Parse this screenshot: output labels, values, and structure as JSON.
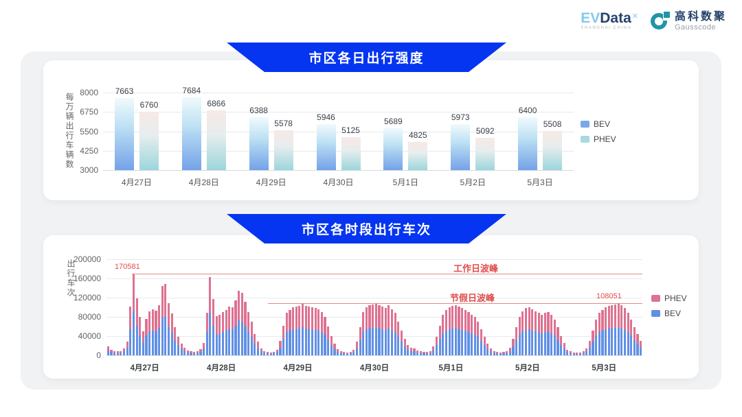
{
  "header": {
    "evdata": {
      "ev": "EV",
      "data": "Data",
      "sup": "✕",
      "subtitle": "SHANGHAI CHINA"
    },
    "gausscode": {
      "cn": "高科数聚",
      "en": "Gausscode"
    }
  },
  "colors": {
    "banner_blue": "#0535f0",
    "bev_blue": "#6090e5",
    "phev_pink": "#dd7291",
    "bev_gradient_top": "#f0fafd",
    "bev_gradient_mid": "#bfe2f4",
    "bev_gradient_bottom": "#74a2e8",
    "phev_gradient_top": "#f7e9e5",
    "phev_gradient_mid": "#e7edee",
    "phev_gradient_bottom": "#9cd6dc",
    "legend_bev_daily": "#79a7ea",
    "legend_phev_daily": "#a5dae0",
    "annotation_red": "#e04c4c",
    "reference_line_red": "#e08a8a",
    "gausscode_teal": "#2095a6",
    "evdata_lightblue": "#85c9ec",
    "evdata_navy": "#24436b"
  },
  "chart_data": [
    {
      "id": "daily",
      "type": "bar",
      "title": "市区各日出行强度",
      "ylabel": "每万辆出行车辆数",
      "ylim": [
        3000,
        8000
      ],
      "yticks": [
        8000,
        6750,
        5500,
        4250,
        3000
      ],
      "grid": true,
      "legend_position": "right",
      "categories": [
        "4月27日",
        "4月28日",
        "4月29日",
        "4月30日",
        "5月1日",
        "5月2日",
        "5月3日"
      ],
      "series": [
        {
          "name": "BEV",
          "values": [
            7663,
            7684,
            6388,
            5946,
            5689,
            5973,
            6400
          ]
        },
        {
          "name": "PHEV",
          "values": [
            6760,
            6866,
            5578,
            5125,
            4825,
            5092,
            5508
          ]
        }
      ]
    },
    {
      "id": "hourly",
      "type": "bar",
      "stacked": true,
      "title": "市区各时段出行车次",
      "ylabel": "出行车次",
      "ylim": [
        0,
        200000
      ],
      "yticks": [
        200000,
        160000,
        120000,
        80000,
        40000,
        0
      ],
      "grid": true,
      "legend_position": "right",
      "categories": [
        "4月27日",
        "4月28日",
        "4月29日",
        "4月30日",
        "5月1日",
        "5月2日",
        "5月3日"
      ],
      "hours_per_day": 24,
      "series": [
        {
          "name": "BEV",
          "values": [
            10000,
            7000,
            5000,
            5000,
            5000,
            8000,
            16000,
            55000,
            91000,
            62000,
            41000,
            27000,
            41000,
            50000,
            52000,
            50000,
            57000,
            79000,
            80000,
            58000,
            47000,
            32000,
            21000,
            14000,
            9000,
            6000,
            4000,
            4000,
            4000,
            7000,
            14000,
            48000,
            88000,
            61000,
            43000,
            44000,
            48000,
            51000,
            54000,
            54000,
            62000,
            73000,
            70000,
            60000,
            49000,
            38000,
            24000,
            15000,
            8000,
            5000,
            4000,
            3000,
            4000,
            7000,
            16000,
            34000,
            48000,
            52000,
            54000,
            55000,
            56000,
            58000,
            56000,
            55000,
            54000,
            53000,
            52000,
            49000,
            43000,
            32000,
            22000,
            13000,
            7000,
            5000,
            4000,
            3000,
            4000,
            6000,
            15000,
            31000,
            49000,
            54000,
            56000,
            57000,
            58000,
            56000,
            55000,
            53000,
            56000,
            52000,
            48000,
            38000,
            28000,
            18000,
            12000,
            9000,
            8000,
            6000,
            4000,
            4000,
            4000,
            5000,
            10000,
            21000,
            34000,
            46000,
            51000,
            54000,
            56000,
            57000,
            55000,
            53000,
            51000,
            49000,
            46000,
            43000,
            38000,
            30000,
            21000,
            13000,
            8000,
            5000,
            4000,
            3000,
            4000,
            5000,
            9000,
            19000,
            31000,
            43000,
            50000,
            53000,
            54000,
            52000,
            50000,
            48000,
            46000,
            48000,
            49000,
            46000,
            41000,
            31000,
            22000,
            14000,
            7000,
            4000,
            3000,
            3000,
            3000,
            4000,
            8000,
            16000,
            28000,
            41000,
            48000,
            51000,
            54000,
            56000,
            57000,
            57000,
            58000,
            56000,
            53000,
            48000,
            41000,
            31000,
            24000,
            16000
          ]
        },
        {
          "name": "PHEV",
          "values": [
            8000,
            5000,
            4000,
            3000,
            4000,
            6000,
            12000,
            46000,
            79581,
            57000,
            39000,
            23000,
            35000,
            41000,
            44000,
            43000,
            47000,
            66000,
            69000,
            50000,
            40000,
            26000,
            17000,
            11000,
            7000,
            4000,
            4000,
            3000,
            4000,
            6000,
            12000,
            40000,
            75000,
            56000,
            39000,
            40000,
            42000,
            44000,
            47000,
            46000,
            53000,
            62000,
            60000,
            52000,
            41000,
            32000,
            21000,
            13000,
            6000,
            4000,
            3000,
            3000,
            3000,
            5000,
            14000,
            28000,
            40000,
            43000,
            46000,
            47000,
            47000,
            49000,
            47000,
            47000,
            46000,
            45000,
            44000,
            41000,
            37000,
            28000,
            18000,
            11000,
            6000,
            4000,
            3000,
            3000,
            3000,
            5000,
            13000,
            27000,
            41000,
            46000,
            48000,
            49000,
            49000,
            48000,
            47000,
            45000,
            48000,
            44000,
            40000,
            32000,
            24000,
            16000,
            10000,
            7000,
            7000,
            4000,
            4000,
            3000,
            3000,
            4000,
            8000,
            17000,
            28000,
            39000,
            44000,
            46000,
            47000,
            48000,
            47000,
            45000,
            44000,
            41000,
            39000,
            37000,
            32000,
            25000,
            17000,
            11000,
            6000,
            4000,
            3000,
            3000,
            3000,
            4000,
            7000,
            16000,
            27000,
            37000,
            42000,
            45000,
            46000,
            44000,
            42000,
            40000,
            39000,
            40000,
            41000,
            39000,
            34000,
            27000,
            18000,
            12000,
            5000,
            4000,
            3000,
            3000,
            3000,
            4000,
            6000,
            14000,
            24000,
            34000,
            40000,
            44000,
            46000,
            47000,
            48000,
            49000,
            50051,
            48000,
            45000,
            40000,
            34000,
            27000,
            21000,
            14000
          ]
        }
      ],
      "reference_lines": [
        {
          "label": "工作日波峰",
          "value": 170581,
          "value_label": "170581",
          "x_start_frac": 0.047
        },
        {
          "label": "节假日波峰",
          "value": 108051,
          "value_label": "108051",
          "x_start_frac": 0.301
        }
      ]
    }
  ]
}
